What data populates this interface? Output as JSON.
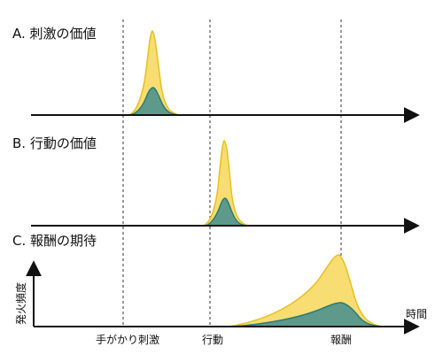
{
  "panels": [
    {
      "key": "A",
      "title": "A. 刺激の価値"
    },
    {
      "key": "B",
      "title": "B. 行動の価値"
    },
    {
      "key": "C",
      "title": "C. 報酬の期待"
    }
  ],
  "axes": {
    "y_label": "発火頻度",
    "x_label": "時間"
  },
  "events": [
    "手がかり刺激",
    "行動",
    "報酬"
  ],
  "colors": {
    "outer_fill": "#f7dd72",
    "outer_stroke": "#e8c020",
    "inner_fill": "#5e9a8c",
    "inner_stroke": "#2f7a70",
    "axis": "#111111",
    "marker_line": "#333333"
  }
}
